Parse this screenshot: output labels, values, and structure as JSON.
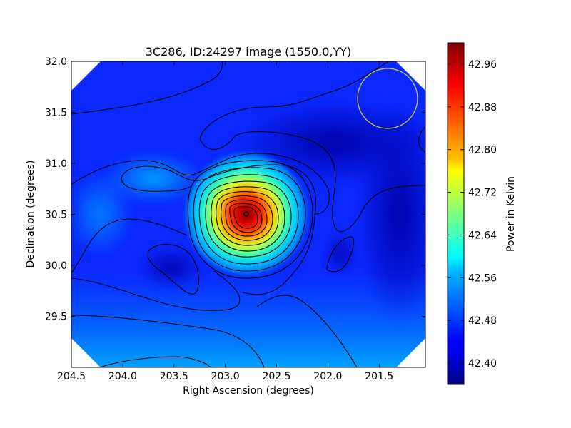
{
  "chart_data": {
    "type": "heatmap",
    "title": "3C286, ID:24297 image (1550.0,YY)",
    "xlabel": "Right Ascension (degrees)",
    "ylabel": "Declination (degrees)",
    "colorbar_label": "Power in Kelvin",
    "xlim": [
      204.5,
      201.05
    ],
    "ylim": [
      29.0,
      32.0
    ],
    "x_ticks": [
      204.5,
      204.0,
      203.5,
      203.0,
      202.5,
      202.0,
      201.5
    ],
    "x_tick_labels": [
      "204.5",
      "204.0",
      "203.5",
      "203.0",
      "202.5",
      "202.0",
      "201.5"
    ],
    "y_ticks": [
      29.5,
      30.0,
      30.5,
      31.0,
      31.5,
      32.0
    ],
    "y_tick_labels": [
      "29.5",
      "30.0",
      "30.5",
      "31.0",
      "31.5",
      "32.0"
    ],
    "color_range": [
      42.36,
      43.0
    ],
    "colorbar_ticks": [
      42.4,
      42.48,
      42.56,
      42.64,
      42.72,
      42.8,
      42.88,
      42.96
    ],
    "colorbar_tick_labels": [
      "42.40",
      "42.48",
      "42.56",
      "42.64",
      "42.72",
      "42.80",
      "42.88",
      "42.96"
    ],
    "colormap": "jet",
    "peak": {
      "ra": 202.8,
      "dec": 30.5,
      "value": 43.0
    },
    "beam_circle": {
      "ra": 201.4,
      "dec": 31.65,
      "radius_deg": 0.3,
      "color": "#c8c832"
    },
    "grid": false
  }
}
